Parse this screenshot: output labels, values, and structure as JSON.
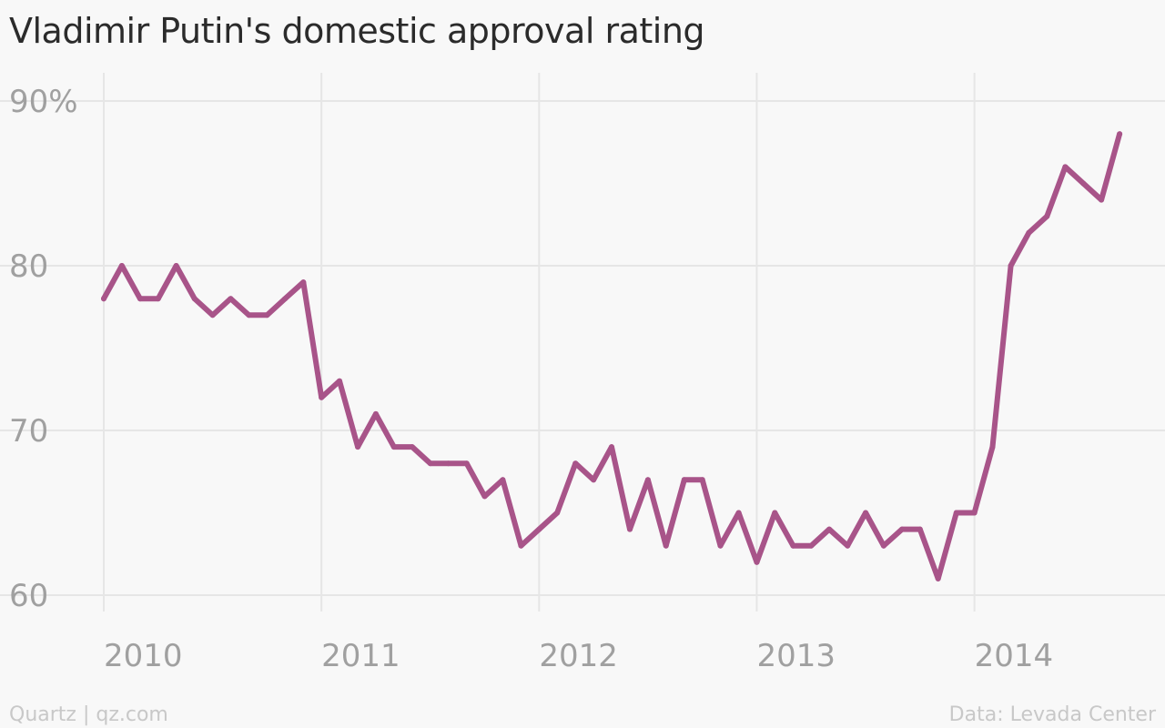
{
  "title": "Vladimir Putin's domestic approval rating",
  "footer": {
    "credit": "Quartz | qz.com",
    "source": "Data: Levada Center"
  },
  "colors": {
    "line": "#a85489",
    "grid": "#e6e6e6",
    "tick": "#a0a0a0",
    "background": "#f8f8f8"
  },
  "chart_data": {
    "type": "line",
    "title": "Vladimir Putin's domestic approval rating",
    "xlabel": "",
    "ylabel": "",
    "ylim": [
      60,
      90
    ],
    "xlim": [
      2010.0,
      2014.75
    ],
    "y_ticks": [
      {
        "value": 90,
        "label": "90%"
      },
      {
        "value": 80,
        "label": "80"
      },
      {
        "value": 70,
        "label": "70"
      },
      {
        "value": 60,
        "label": "60"
      }
    ],
    "x_ticks": [
      {
        "value": 2010,
        "label": "2010"
      },
      {
        "value": 2011,
        "label": "2011"
      },
      {
        "value": 2012,
        "label": "2012"
      },
      {
        "value": 2013,
        "label": "2013"
      },
      {
        "value": 2014,
        "label": "2014"
      }
    ],
    "grid": true,
    "series": [
      {
        "x": [
          2010.0,
          2010.083,
          2010.167,
          2010.25,
          2010.333,
          2010.417,
          2010.5,
          2010.583,
          2010.667,
          2010.75,
          2010.833,
          2010.917,
          2011.0,
          2011.083,
          2011.167,
          2011.25,
          2011.333,
          2011.417,
          2011.5,
          2011.583,
          2011.667,
          2011.75,
          2011.833,
          2011.917,
          2012.0,
          2012.083,
          2012.167,
          2012.25,
          2012.333,
          2012.417,
          2012.5,
          2012.583,
          2012.667,
          2012.75,
          2012.833,
          2012.917,
          2013.0,
          2013.083,
          2013.167,
          2013.25,
          2013.333,
          2013.417,
          2013.5,
          2013.583,
          2013.667,
          2013.75,
          2013.833,
          2013.917,
          2014.0,
          2014.083,
          2014.167,
          2014.25,
          2014.333,
          2014.417,
          2014.5,
          2014.583,
          2014.667
        ],
        "values": [
          78,
          80,
          78,
          78,
          80,
          78,
          77,
          78,
          77,
          77,
          78,
          79,
          72,
          73,
          69,
          71,
          69,
          69,
          68,
          68,
          68,
          66,
          67,
          63,
          64,
          65,
          68,
          67,
          69,
          64,
          67,
          63,
          67,
          67,
          63,
          65,
          62,
          65,
          63,
          63,
          64,
          63,
          65,
          63,
          64,
          64,
          61,
          65,
          65,
          69,
          80,
          82,
          83,
          86,
          85,
          84,
          88
        ]
      }
    ]
  }
}
